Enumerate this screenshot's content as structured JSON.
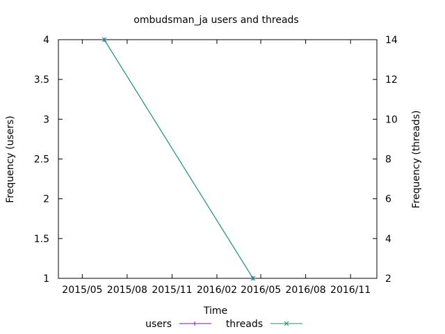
{
  "chart_data": {
    "type": "line",
    "title": "ombudsman_ja users and threads",
    "xlabel": "Time",
    "ylabel": "Frequency (users)",
    "y2label": "Frequency (threads)",
    "x_ticks": [
      "2015/05",
      "2015/08",
      "2015/11",
      "2016/02",
      "2016/05",
      "2016/08",
      "2016/11"
    ],
    "y_ticks": [
      "1",
      "1.5",
      "2",
      "2.5",
      "3",
      "3.5",
      "4"
    ],
    "y2_ticks": [
      "2",
      "4",
      "6",
      "8",
      "10",
      "12",
      "14"
    ],
    "ylim": [
      1,
      4
    ],
    "y2lim": [
      2,
      14
    ],
    "xlim": [
      "2015-03-13",
      "2016-12-25"
    ],
    "grid": false,
    "legend_position": "bottom-center",
    "series": [
      {
        "name": "users",
        "axis": "y",
        "color": "#9400d3",
        "marker": "plus",
        "x": [
          "2015-06-15",
          "2016-04-15"
        ],
        "values": [
          4,
          1
        ]
      },
      {
        "name": "threads",
        "axis": "y2",
        "color": "#009e73",
        "marker": "cross",
        "x": [
          "2015-06-15",
          "2016-04-15"
        ],
        "values": [
          14,
          2
        ]
      }
    ]
  }
}
